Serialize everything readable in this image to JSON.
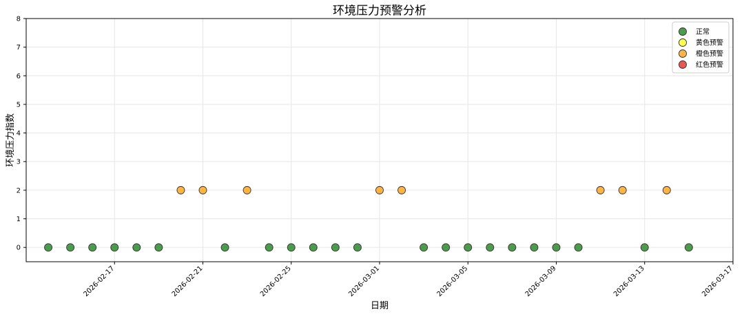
{
  "chart_data": {
    "type": "scatter",
    "title": "环境压力预警分析",
    "xlabel": "日期",
    "ylabel": "环境压力指数",
    "xlim": [
      "2026-02-13",
      "2026-03-17"
    ],
    "ylim": [
      -0.5,
      8
    ],
    "x_ticks": [
      "2026-02-17",
      "2026-02-21",
      "2026-02-25",
      "2026-03-01",
      "2026-03-05",
      "2026-03-09",
      "2026-03-13",
      "2026-03-17"
    ],
    "y_ticks": [
      0,
      1,
      2,
      3,
      4,
      5,
      6,
      7,
      8
    ],
    "grid": true,
    "legend_position": "top-right",
    "series": [
      {
        "name": "正常",
        "color": "#2e8b2e",
        "points": [
          {
            "x": "2026-02-14",
            "y": 0
          },
          {
            "x": "2026-02-15",
            "y": 0
          },
          {
            "x": "2026-02-16",
            "y": 0
          },
          {
            "x": "2026-02-17",
            "y": 0
          },
          {
            "x": "2026-02-18",
            "y": 0
          },
          {
            "x": "2026-02-19",
            "y": 0
          },
          {
            "x": "2026-02-22",
            "y": 0
          },
          {
            "x": "2026-02-24",
            "y": 0
          },
          {
            "x": "2026-02-25",
            "y": 0
          },
          {
            "x": "2026-02-26",
            "y": 0
          },
          {
            "x": "2026-02-27",
            "y": 0
          },
          {
            "x": "2026-02-28",
            "y": 0
          },
          {
            "x": "2026-03-03",
            "y": 0
          },
          {
            "x": "2026-03-04",
            "y": 0
          },
          {
            "x": "2026-03-05",
            "y": 0
          },
          {
            "x": "2026-03-06",
            "y": 0
          },
          {
            "x": "2026-03-07",
            "y": 0
          },
          {
            "x": "2026-03-08",
            "y": 0
          },
          {
            "x": "2026-03-09",
            "y": 0
          },
          {
            "x": "2026-03-10",
            "y": 0
          },
          {
            "x": "2026-03-13",
            "y": 0
          },
          {
            "x": "2026-03-15",
            "y": 0
          }
        ]
      },
      {
        "name": "黄色预警",
        "color": "#ffff33",
        "points": []
      },
      {
        "name": "橙色预警",
        "color": "#ffa726",
        "points": [
          {
            "x": "2026-02-20",
            "y": 2
          },
          {
            "x": "2026-02-21",
            "y": 2
          },
          {
            "x": "2026-02-23",
            "y": 2
          },
          {
            "x": "2026-03-01",
            "y": 2
          },
          {
            "x": "2026-03-02",
            "y": 2
          },
          {
            "x": "2026-03-11",
            "y": 2
          },
          {
            "x": "2026-03-12",
            "y": 2
          },
          {
            "x": "2026-03-14",
            "y": 2
          }
        ]
      },
      {
        "name": "红色预警",
        "color": "#e53935",
        "points": []
      }
    ]
  }
}
